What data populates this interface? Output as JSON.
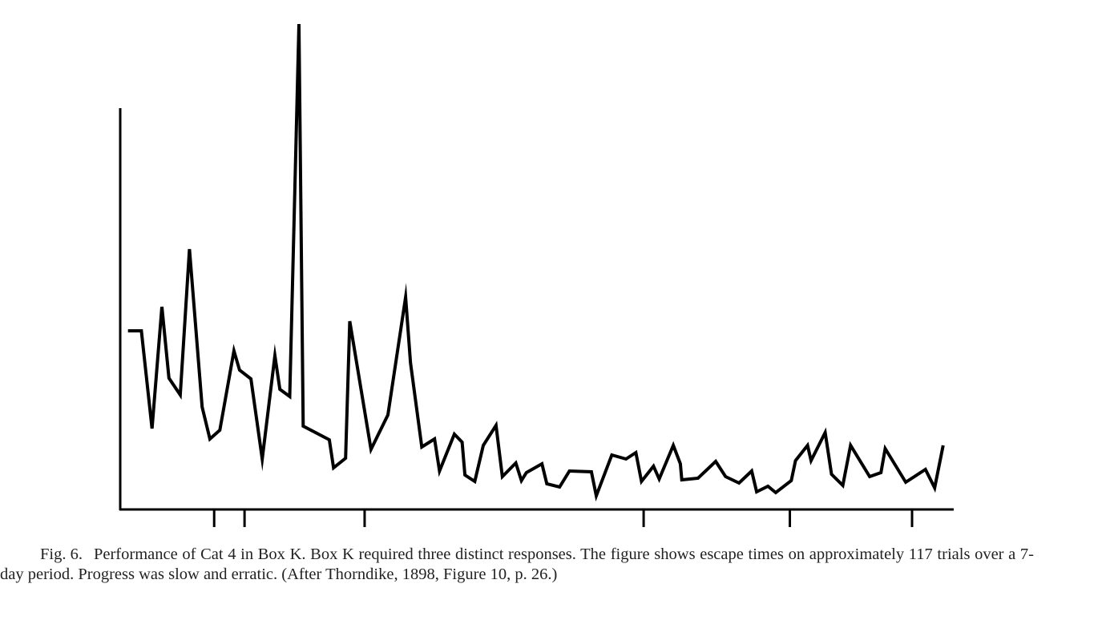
{
  "chart_data": {
    "type": "line",
    "x": [
      1.1,
      3.0,
      4.5,
      5.9,
      6.9,
      8.5,
      9.8,
      11.6,
      12.7,
      14.1,
      16.1,
      16.9,
      18.5,
      20.1,
      21.9,
      22.6,
      24.0,
      25.3,
      25.9,
      29.6,
      30.2,
      31.9,
      32.5,
      35.5,
      37.9,
      40.4,
      41.1,
      42.7,
      44.5,
      45.2,
      47.3,
      48.4,
      48.8,
      50.2,
      51.4,
      53.2,
      54.1,
      56.0,
      56.8,
      57.5,
      59.7,
      60.4,
      62.2,
      63.6,
      66.7,
      67.4,
      69.6,
      71.6,
      73.0,
      73.8,
      75.5,
      76.3,
      78.3,
      79.3,
      79.5,
      81.8,
      84.3,
      85.7,
      87.6,
      89.4,
      90.1,
      91.7,
      92.8,
      95.0,
      95.6,
      97.3,
      97.8,
      99.8,
      100.7,
      102.3,
      103.4,
      106.1,
      107.7,
      108.3,
      111.2,
      114.0,
      115.3,
      116.5
    ],
    "series": [
      {
        "color": "#000000",
        "values": [
          44.6,
          44.6,
          20.2,
          50.6,
          32.8,
          28.6,
          65,
          25.6,
          17.6,
          19.8,
          39.6,
          34.8,
          32.6,
          12.6,
          38.4,
          30,
          28.2,
          121.2,
          20.8,
          17.4,
          10.4,
          12.8,
          47,
          15,
          23.6,
          53,
          36.6,
          15.6,
          17.6,
          9.6,
          18.8,
          16.8,
          8.6,
          7,
          16,
          21,
          8.2,
          11.6,
          7.2,
          9.2,
          11.4,
          6.4,
          5.6,
          9.6,
          9.4,
          3.4,
          13.6,
          12.6,
          14.2,
          7,
          10.8,
          7.6,
          16,
          11.4,
          7.4,
          7.8,
          12,
          8.2,
          6.6,
          9.6,
          4.4,
          5.8,
          4.2,
          7.2,
          12.2,
          16,
          12.2,
          19.2,
          8.8,
          6,
          16,
          8.2,
          9.2,
          15.2,
          6.8,
          10,
          5.4,
          16
        ]
      }
    ],
    "xlim": [
      0,
      118
    ],
    "ylim": [
      0,
      100
    ],
    "xticks": [
      13.3,
      17.6,
      34.6,
      74.1,
      94.8,
      112.1
    ],
    "caption_label": "Fig. 6.",
    "caption": "Performance of Cat 4 in Box K. Box K required three distinct responses. The figure shows escape times on approximately 117 trials over a 7-day period. Progress was slow and erratic. (After Thorndike, 1898, Figure 10, p. 26.)"
  }
}
